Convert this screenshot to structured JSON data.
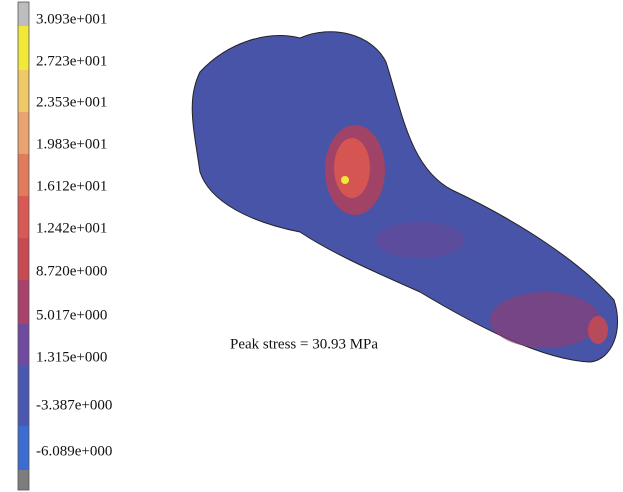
{
  "legend": {
    "labels": [
      "3.093e+001",
      "2.723e+001",
      "2.353e+001",
      "1.983e+001",
      "1.612e+001",
      "1.242e+001",
      "8.720e+000",
      "5.017e+000",
      "1.315e+000",
      "-3.387e+000",
      "-6.089e+000"
    ]
  },
  "annotation": "Peak stress = 30.93 MPa"
}
